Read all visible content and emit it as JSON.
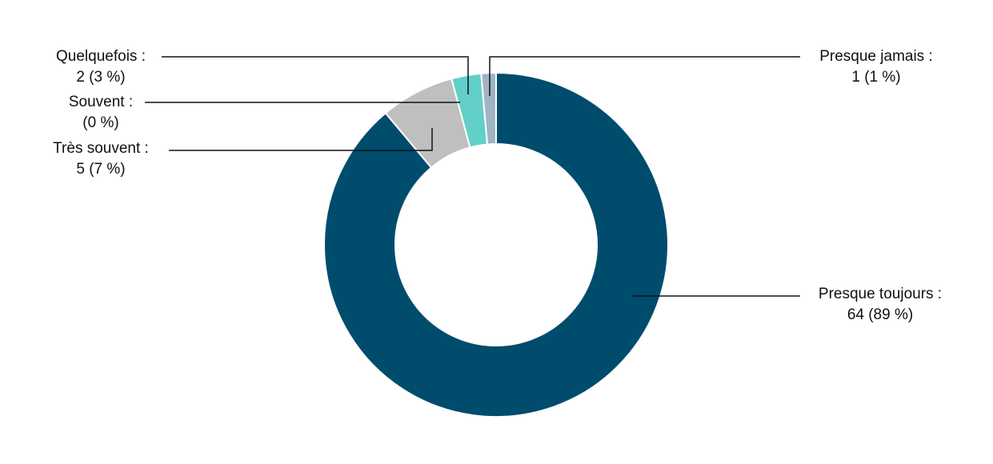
{
  "chart_data": {
    "type": "donut",
    "categories": [
      "Presque toujours :",
      "Très souvent :",
      "Souvent :",
      "Quelquefois :",
      "Presque jamais :"
    ],
    "values": [
      64,
      5,
      0,
      2,
      1
    ],
    "value_labels": [
      "64 (89 %)",
      "5 (7 %)",
      "(0 %)",
      "2 (3 %)",
      "1 (1 %)"
    ],
    "colors": [
      "#004c6d",
      "#bfbfbf",
      "#7fa7c4",
      "#62cfc9",
      "#9fb5c4"
    ]
  }
}
